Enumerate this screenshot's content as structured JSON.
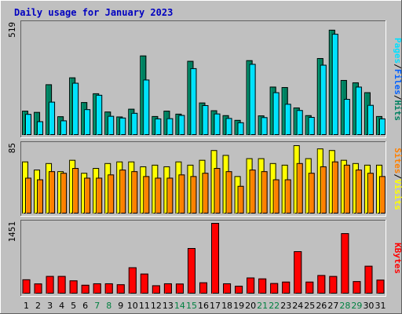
{
  "chart_data": {
    "type": "bar",
    "title": "Daily usage for January 2023",
    "categories": [
      "1",
      "2",
      "3",
      "4",
      "5",
      "6",
      "7",
      "8",
      "9",
      "10",
      "11",
      "12",
      "13",
      "14",
      "15",
      "16",
      "17",
      "18",
      "19",
      "20",
      "21",
      "22",
      "23",
      "24",
      "25",
      "26",
      "27",
      "28",
      "29",
      "30",
      "31"
    ],
    "weekend_days": [
      "7",
      "8",
      "14",
      "15",
      "21",
      "22",
      "28",
      "29"
    ],
    "panels": [
      {
        "id": "hits-files",
        "ymax": "519",
        "ylim": [
          0,
          519
        ],
        "legend": [
          "Pages",
          "/",
          "Files",
          "/",
          "Hits"
        ],
        "series": [
          {
            "name": "Hits",
            "color": "#008060",
            "values": [
              113,
              107,
              236,
              87,
              268,
              153,
              194,
              109,
              86,
              122,
              370,
              88,
              113,
              99,
              345,
              151,
              115,
              92,
              70,
              348,
              91,
              225,
              223,
              128,
              92,
              358,
              490,
              256,
              245,
              199,
              88
            ]
          },
          {
            "name": "Files",
            "color": "#00e0ff",
            "values": [
              98,
              64,
              155,
              68,
              243,
              120,
              187,
              89,
              81,
              103,
              258,
              77,
              78,
              93,
              311,
              139,
              100,
              79,
              59,
              331,
              83,
              199,
              145,
              116,
              84,
              327,
              471,
              168,
              225,
              140,
              77
            ]
          }
        ]
      },
      {
        "id": "visits-sites",
        "ymax": "85",
        "ylim": [
          0,
          85
        ],
        "legend": [
          "Sites",
          "/",
          "Visits"
        ],
        "series": [
          {
            "name": "Visits",
            "color": "#ffff00",
            "values": [
              64,
              54,
              62,
              52,
              66,
              50,
              56,
              62,
              64,
              64,
              58,
              60,
              58,
              64,
              60,
              66,
              78,
              72,
              46,
              68,
              68,
              62,
              60,
              84,
              68,
              80,
              78,
              66,
              62,
              60,
              60
            ]
          },
          {
            "name": "Sites",
            "color": "#ff8000",
            "values": [
              44,
              42,
              52,
              50,
              56,
              44,
              44,
              48,
              54,
              52,
              46,
              44,
              44,
              48,
              46,
              50,
              56,
              52,
              34,
              54,
              52,
              42,
              42,
              62,
              50,
              58,
              64,
              60,
              54,
              50,
              46
            ]
          }
        ]
      },
      {
        "id": "kbytes",
        "ymax": "1451",
        "ylim": [
          0,
          1451
        ],
        "legend": [
          "KBytes"
        ],
        "series": [
          {
            "name": "KBytes",
            "color": "#ff0000",
            "values": [
              292,
              207,
              361,
              361,
              270,
              180,
              210,
              210,
              190,
              540,
              410,
              170,
              210,
              205,
              935,
              230,
              1451,
              210,
              160,
              330,
              310,
              215,
              245,
              870,
              245,
              380,
              360,
              1240,
              255,
              570,
              285
            ]
          }
        ]
      }
    ]
  }
}
